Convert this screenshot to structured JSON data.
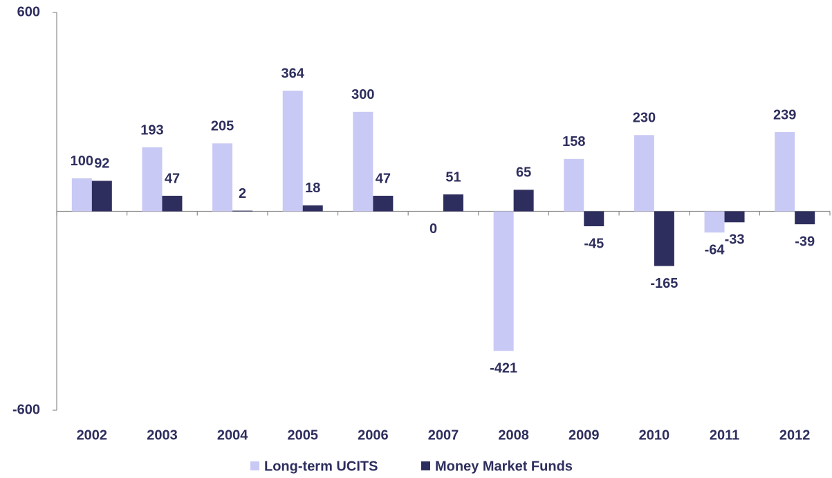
{
  "chart_data": {
    "type": "bar",
    "categories": [
      "2002",
      "2003",
      "2004",
      "2005",
      "2006",
      "2007",
      "2008",
      "2009",
      "2010",
      "2011",
      "2012"
    ],
    "series": [
      {
        "name": "Long-term UCITS",
        "color": "#c9c9f5",
        "values": [
          100,
          193,
          205,
          364,
          300,
          0,
          -421,
          158,
          230,
          -64,
          239
        ]
      },
      {
        "name": "Money Market Funds",
        "color": "#2e2e5e",
        "values": [
          92,
          47,
          2,
          18,
          47,
          51,
          65,
          -45,
          -165,
          -33,
          -39
        ]
      }
    ],
    "ylim": [
      -600,
      600
    ],
    "yticks": [
      -600,
      600
    ],
    "grid": false,
    "legend": "bottom"
  }
}
